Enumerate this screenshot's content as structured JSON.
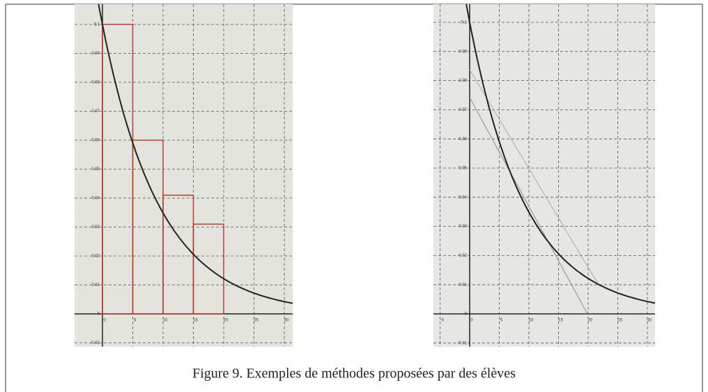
{
  "figure": {
    "caption": "Figure 9. Exemples de méthodes proposées par des élèves",
    "panels": [
      {
        "yticks": [
          0.1,
          0.09,
          0.08,
          0.07,
          0.06,
          0.05,
          0.04,
          0.03,
          0.02,
          0.01,
          0,
          -0.01
        ],
        "xticks": [
          0,
          5,
          10,
          15,
          20,
          25,
          30
        ],
        "steps": [
          0.1,
          0.06,
          0.041,
          0.031
        ]
      },
      {
        "yticks": [
          0.1,
          0.09,
          0.08,
          0.07,
          0.06,
          0.05,
          0.04,
          0.03,
          0.02,
          0.01,
          0,
          -0.01
        ],
        "xticks": [
          -5,
          0,
          5,
          10,
          15,
          20,
          25,
          30
        ]
      }
    ]
  }
}
